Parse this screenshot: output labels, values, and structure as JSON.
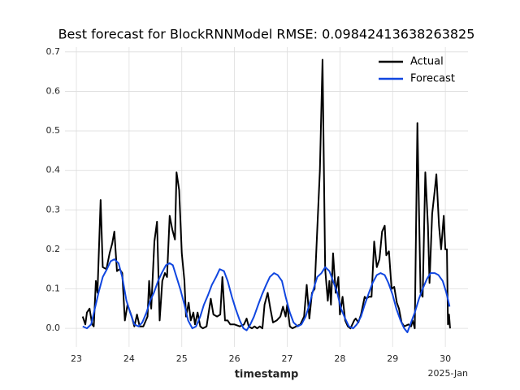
{
  "chart_data": {
    "type": "line",
    "title": "Best forecast for BlockRNNModel RMSE: 0.09842413638263825",
    "x_label": "timestamp",
    "x_offset_label": "2025-Jan",
    "xlim": [
      22.784,
      30.43
    ],
    "ylim": [
      -0.047,
      0.712
    ],
    "xticks": [
      23,
      24,
      25,
      26,
      27,
      28,
      29,
      30
    ],
    "yticks": [
      {
        "value": 0,
        "label": "0.0"
      },
      {
        "value": 0.1,
        "label": "0.1"
      },
      {
        "value": 0.2,
        "label": "0.2"
      },
      {
        "value": 0.3,
        "label": "0.3"
      },
      {
        "value": 0.4,
        "label": "0.4"
      },
      {
        "value": 0.5,
        "label": "0.5"
      },
      {
        "value": 0.6,
        "label": "0.6"
      },
      {
        "value": 0.7,
        "label": "0.7"
      }
    ],
    "grid": true,
    "legend": "upper right",
    "series": [
      {
        "name": "Actual",
        "color": "#000000",
        "x": [
          23.12,
          23.17,
          23.2,
          23.25,
          23.3,
          23.33,
          23.37,
          23.4,
          23.46,
          23.5,
          23.57,
          23.63,
          23.68,
          23.72,
          23.77,
          23.82,
          23.87,
          23.92,
          23.97,
          24.05,
          24.1,
          24.15,
          24.2,
          24.27,
          24.35,
          24.38,
          24.42,
          24.48,
          24.53,
          24.58,
          24.63,
          24.68,
          24.72,
          24.77,
          24.82,
          24.87,
          24.9,
          24.95,
          25.0,
          25.05,
          25.08,
          25.13,
          25.17,
          25.22,
          25.25,
          25.3,
          25.35,
          25.4,
          25.47,
          25.55,
          25.6,
          25.67,
          25.73,
          25.77,
          25.82,
          25.87,
          25.92,
          26.0,
          26.1,
          26.18,
          26.23,
          26.27,
          26.33,
          26.38,
          26.43,
          26.48,
          26.53,
          26.57,
          26.63,
          26.68,
          26.73,
          26.8,
          26.87,
          26.92,
          26.97,
          27.0,
          27.05,
          27.1,
          27.17,
          27.25,
          27.32,
          27.37,
          27.42,
          27.47,
          27.52,
          27.57,
          27.62,
          27.67,
          27.72,
          27.77,
          27.8,
          27.83,
          27.87,
          27.92,
          27.97,
          28.0,
          28.05,
          28.1,
          28.15,
          28.2,
          28.27,
          28.3,
          28.35,
          28.4,
          28.47,
          28.5,
          28.55,
          28.6,
          28.65,
          28.7,
          28.75,
          28.8,
          28.85,
          28.88,
          28.93,
          28.98,
          29.03,
          29.08,
          29.12,
          29.17,
          29.22,
          29.3,
          29.35,
          29.38,
          29.42,
          29.47,
          29.5,
          29.53,
          29.57,
          29.62,
          29.67,
          29.7,
          29.75,
          29.8,
          29.83,
          29.88,
          29.92,
          29.97,
          30.0,
          30.03,
          30.05,
          30.07,
          30.09
        ],
        "values": [
          0.03,
          0.01,
          0.04,
          0.05,
          0.01,
          0.005,
          0.12,
          0.09,
          0.325,
          0.155,
          0.15,
          0.19,
          0.215,
          0.245,
          0.145,
          0.15,
          0.14,
          0.02,
          0.06,
          0.03,
          0.005,
          0.035,
          0.005,
          0.005,
          0.03,
          0.12,
          0.05,
          0.22,
          0.27,
          0.02,
          0.12,
          0.14,
          0.13,
          0.285,
          0.25,
          0.225,
          0.395,
          0.35,
          0.19,
          0.12,
          0.03,
          0.065,
          0.02,
          0.04,
          0.01,
          0.04,
          0.005,
          0.0,
          0.005,
          0.075,
          0.035,
          0.03,
          0.035,
          0.13,
          0.02,
          0.02,
          0.01,
          0.01,
          0.005,
          0.01,
          0.025,
          0.005,
          0.0,
          0.005,
          0.0,
          0.005,
          0.0,
          0.06,
          0.09,
          0.05,
          0.015,
          0.02,
          0.03,
          0.055,
          0.03,
          0.06,
          0.005,
          0.0,
          0.005,
          0.01,
          0.03,
          0.11,
          0.025,
          0.09,
          0.1,
          0.25,
          0.4,
          0.68,
          0.15,
          0.07,
          0.12,
          0.06,
          0.19,
          0.09,
          0.13,
          0.035,
          0.08,
          0.02,
          0.005,
          0.0,
          0.02,
          0.025,
          0.015,
          0.035,
          0.08,
          0.075,
          0.08,
          0.08,
          0.22,
          0.155,
          0.175,
          0.245,
          0.26,
          0.185,
          0.195,
          0.1,
          0.105,
          0.065,
          0.05,
          0.015,
          0.005,
          0.01,
          0.005,
          0.02,
          0.0,
          0.52,
          0.3,
          0.09,
          0.08,
          0.395,
          0.26,
          0.115,
          0.29,
          0.35,
          0.39,
          0.26,
          0.2,
          0.285,
          0.2,
          0.2,
          0.01,
          0.035,
          0.0
        ]
      },
      {
        "name": "Forecast",
        "color": "#1046e0",
        "x": [
          23.12,
          23.2,
          23.28,
          23.35,
          23.42,
          23.5,
          23.58,
          23.65,
          23.72,
          23.8,
          23.87,
          23.95,
          24.02,
          24.1,
          24.18,
          24.25,
          24.33,
          24.4,
          24.47,
          24.55,
          24.62,
          24.7,
          24.77,
          24.83,
          24.9,
          24.97,
          25.05,
          25.12,
          25.2,
          25.27,
          25.35,
          25.42,
          25.5,
          25.57,
          25.65,
          25.72,
          25.8,
          25.87,
          25.95,
          26.02,
          26.1,
          26.17,
          26.23,
          26.3,
          26.37,
          26.45,
          26.52,
          26.6,
          26.67,
          26.75,
          26.82,
          26.9,
          26.97,
          27.05,
          27.12,
          27.2,
          27.27,
          27.35,
          27.42,
          27.5,
          27.57,
          27.65,
          27.72,
          27.8,
          27.87,
          27.95,
          28.02,
          28.1,
          28.17,
          28.25,
          28.32,
          28.4,
          28.47,
          28.55,
          28.62,
          28.7,
          28.77,
          28.85,
          28.92,
          29.0,
          29.07,
          29.15,
          29.22,
          29.28,
          29.35,
          29.42,
          29.5,
          29.57,
          29.65,
          29.72,
          29.8,
          29.87,
          29.95,
          30.02,
          30.08
        ],
        "values": [
          0.005,
          0.0,
          0.01,
          0.05,
          0.09,
          0.13,
          0.15,
          0.17,
          0.175,
          0.165,
          0.13,
          0.07,
          0.04,
          0.01,
          0.005,
          0.015,
          0.04,
          0.07,
          0.09,
          0.12,
          0.14,
          0.16,
          0.165,
          0.16,
          0.13,
          0.1,
          0.06,
          0.02,
          0.0,
          0.005,
          0.03,
          0.06,
          0.085,
          0.11,
          0.13,
          0.15,
          0.145,
          0.12,
          0.08,
          0.05,
          0.02,
          0.0,
          -0.005,
          0.01,
          0.03,
          0.06,
          0.085,
          0.11,
          0.13,
          0.14,
          0.135,
          0.12,
          0.08,
          0.04,
          0.015,
          0.005,
          0.01,
          0.03,
          0.06,
          0.1,
          0.13,
          0.14,
          0.155,
          0.145,
          0.12,
          0.09,
          0.05,
          0.025,
          0.005,
          0.0,
          0.01,
          0.03,
          0.06,
          0.09,
          0.115,
          0.135,
          0.14,
          0.135,
          0.115,
          0.085,
          0.05,
          0.02,
          0.0,
          -0.01,
          0.015,
          0.04,
          0.075,
          0.1,
          0.125,
          0.14,
          0.14,
          0.135,
          0.12,
          0.09,
          0.055
        ]
      }
    ]
  }
}
